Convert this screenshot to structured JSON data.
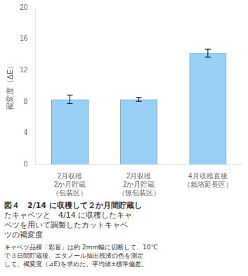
{
  "chart_data": {
    "type": "bar",
    "ylabel": "褐変度（ΔE）",
    "categories": [
      "2月収穫\n2か月貯蔵\n（包装区）",
      "2月収穫\n2か月貯蔵\n（無包装区）",
      "4月収穫直後\n（栽培延長区）"
    ],
    "values": [
      8.3,
      8.3,
      14.2
    ],
    "errors": [
      0.55,
      0.25,
      0.5
    ],
    "ylim": [
      0,
      20
    ],
    "yticks": [
      0,
      4,
      8,
      12,
      16,
      20
    ],
    "grid": false,
    "annotations": [
      "図４　2/14 に収穫して２か月間貯蔵し",
      "たキャベツと　4/14 に収穫したキャ",
      "ベツを用いて調製したカットキャベ",
      "ツの褐変度",
      "キャベツ品種「彩音」は約 2mm幅に切断して、10℃",
      "で３日間貯蔵後、エタノール抽出残渣の色を測定",
      "して、褐変度（⊿E)を求めた。平均値±標準偏差。"
    ]
  }
}
